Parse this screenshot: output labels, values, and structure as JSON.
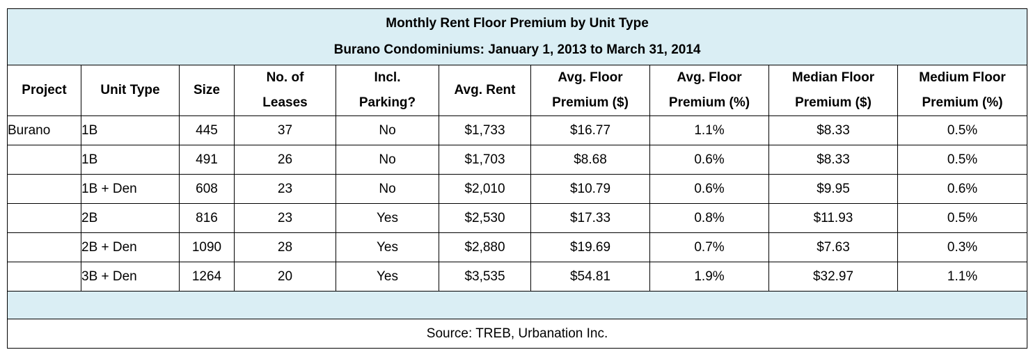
{
  "table": {
    "title": "Monthly Rent Floor Premium by Unit Type",
    "subtitle": "Burano Condominiums: January 1, 2013 to March 31, 2014",
    "headers": [
      [
        "Project"
      ],
      [
        "Unit Type"
      ],
      [
        "Size"
      ],
      [
        "No. of",
        "Leases"
      ],
      [
        "Incl.",
        "Parking?"
      ],
      [
        "Avg. Rent"
      ],
      [
        "Avg. Floor",
        "Premium ($)"
      ],
      [
        "Avg. Floor",
        "Premium (%)"
      ],
      [
        "Median Floor",
        "Premium ($)"
      ],
      [
        "Medium Floor",
        "Premium (%)"
      ]
    ],
    "rows": [
      [
        "Burano",
        "1B",
        "445",
        "37",
        "No",
        "$1,733",
        "$16.77",
        "1.1%",
        "$8.33",
        "0.5%"
      ],
      [
        "",
        "1B",
        "491",
        "26",
        "No",
        "$1,703",
        "$8.68",
        "0.6%",
        "$8.33",
        "0.5%"
      ],
      [
        "",
        "1B + Den",
        "608",
        "23",
        "No",
        "$2,010",
        "$10.79",
        "0.6%",
        "$9.95",
        "0.6%"
      ],
      [
        "",
        "2B",
        "816",
        "23",
        "Yes",
        "$2,530",
        "$17.33",
        "0.8%",
        "$11.93",
        "0.5%"
      ],
      [
        "",
        "2B + Den",
        "1090",
        "28",
        "Yes",
        "$2,880",
        "$19.69",
        "0.7%",
        "$7.63",
        "0.3%"
      ],
      [
        "",
        "3B + Den",
        "1264",
        "20",
        "Yes",
        "$3,535",
        "$54.81",
        "1.9%",
        "$32.97",
        "1.1%"
      ]
    ],
    "source": "Source: TREB, Urbanation Inc.",
    "colors": {
      "header_band": "#daeef4",
      "border": "#000000"
    }
  }
}
